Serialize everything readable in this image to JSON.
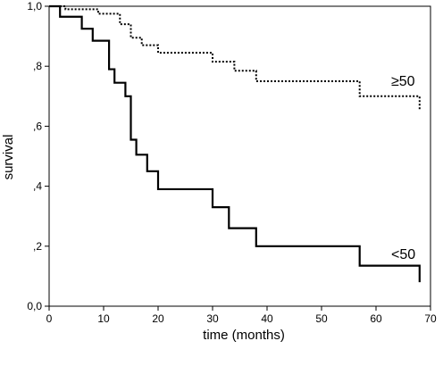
{
  "chart_data": {
    "type": "line",
    "step": true,
    "xlabel": "time (months)",
    "ylabel": "survival",
    "xlim": [
      0,
      70
    ],
    "ylim": [
      0,
      1
    ],
    "x_ticks": [
      0,
      10,
      20,
      30,
      40,
      50,
      60,
      70
    ],
    "x_tick_labels": [
      "0",
      "10",
      "20",
      "30",
      "40",
      "50",
      "60",
      "70"
    ],
    "y_ticks": [
      0,
      0.2,
      0.4,
      0.6,
      0.8,
      1.0
    ],
    "y_tick_labels": [
      "0,0",
      ",2",
      ",4",
      ",6",
      ",8",
      "1,0"
    ],
    "grid": false,
    "legend": "none",
    "series": [
      {
        "name": "≥50",
        "style": "dotted",
        "color": "#000000",
        "x": [
          0,
          3,
          9,
          13,
          15,
          17,
          20,
          30,
          34,
          38,
          57,
          68
        ],
        "y": [
          1.0,
          0.99,
          0.975,
          0.94,
          0.895,
          0.87,
          0.845,
          0.815,
          0.785,
          0.75,
          0.7,
          0.655
        ]
      },
      {
        "name": "<50",
        "style": "solid",
        "color": "#000000",
        "x": [
          0,
          2,
          6,
          8,
          11,
          12,
          14,
          15,
          16,
          18,
          20,
          30,
          33,
          38,
          57,
          68
        ],
        "y": [
          1.0,
          0.965,
          0.925,
          0.885,
          0.79,
          0.745,
          0.7,
          0.555,
          0.505,
          0.45,
          0.39,
          0.33,
          0.26,
          0.2,
          0.135,
          0.08
        ]
      }
    ]
  }
}
